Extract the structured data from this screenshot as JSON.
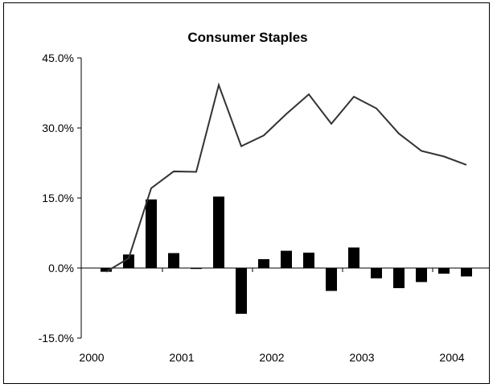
{
  "chart_data": {
    "type": "bar",
    "title": "Consumer Staples",
    "xlabel": "",
    "ylabel": "",
    "ylim": [
      -15,
      45
    ],
    "yticks": [
      -15,
      0,
      15,
      30,
      45
    ],
    "ytick_labels": [
      "-15.0%",
      "0.0%",
      "15.0%",
      "30.0%",
      "45.0%"
    ],
    "xlim": [
      2000,
      2004.5
    ],
    "xticks": [
      2000,
      2001,
      2002,
      2003,
      2004
    ],
    "xtick_labels": [
      "2000",
      "2001",
      "2002",
      "2003",
      "2004"
    ],
    "grid": false,
    "legend": "none",
    "colors": {
      "bars": "#000000",
      "line": "#333333",
      "axis": "#000000"
    },
    "series": [
      {
        "type": "bar",
        "x": [
          2000.25,
          2000.5,
          2000.75,
          2001.0,
          2001.25,
          2001.5,
          2001.75,
          2002.0,
          2002.25,
          2002.5,
          2002.75,
          2003.0,
          2003.25,
          2003.5,
          2003.75,
          2004.0,
          2004.25
        ],
        "values": [
          -0.8,
          2.9,
          14.7,
          3.2,
          -0.2,
          15.3,
          -9.8,
          1.9,
          3.7,
          3.3,
          -4.9,
          4.4,
          -2.2,
          -4.3,
          -3.0,
          -1.2,
          -1.8
        ]
      },
      {
        "type": "line",
        "x": [
          2000.25,
          2000.5,
          2000.75,
          2001.0,
          2001.25,
          2001.5,
          2001.75,
          2002.0,
          2002.25,
          2002.5,
          2002.75,
          2003.0,
          2003.25,
          2003.5,
          2003.75,
          2004.0,
          2004.25
        ],
        "values": [
          -0.8,
          2.1,
          17.1,
          20.7,
          20.6,
          39.2,
          26.1,
          28.4,
          33.0,
          37.2,
          30.9,
          36.7,
          34.2,
          28.8,
          25.1,
          23.9,
          22.1
        ]
      }
    ]
  }
}
